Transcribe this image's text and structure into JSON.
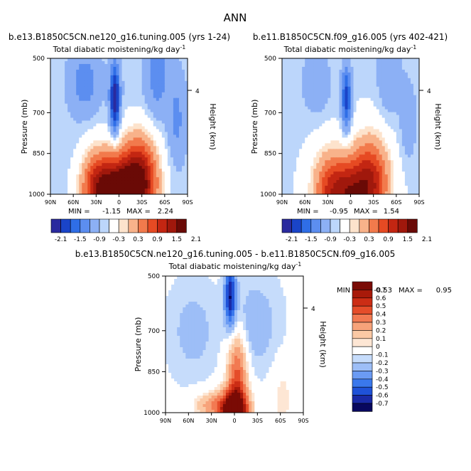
{
  "title": "ANN",
  "palette": {
    "full": [
      "#2a2a9e",
      "#1a44c8",
      "#2f6ee6",
      "#5c8ef0",
      "#8cb0f5",
      "#bcd6fb",
      "#ffffff",
      "#fde3cc",
      "#f8b28a",
      "#f27a4c",
      "#e64a23",
      "#c32612",
      "#a0180c",
      "#6a0a06"
    ],
    "diff": [
      "#08085e",
      "#1a2aa6",
      "#1f52d8",
      "#3a78ec",
      "#6b9bf3",
      "#9dbef7",
      "#c6dcfb",
      "#ffffff",
      "#fde6d4",
      "#fbc9a5",
      "#f7a37a",
      "#f27a52",
      "#e54d2a",
      "#cc2d15",
      "#a81a0a",
      "#7a0b05"
    ]
  },
  "chart_data": [
    {
      "type": "heatmap",
      "subtitle": "b.e13.B1850C5CN.ne120_g16.tuning.005 (yrs 1-24)",
      "title": "Total diabatic moistening/kg day",
      "title_sup": "-1",
      "ylabel": "Pressure (mb)",
      "ylabel_right": "Height (km)",
      "right_tick": "4",
      "yticks": [
        "500",
        "700",
        "850",
        "1000"
      ],
      "xticks": [
        "90N",
        "60N",
        "30N",
        "0",
        "30S",
        "60S",
        "90S"
      ],
      "min_label": "MIN =",
      "min_value": "-1.15",
      "max_label": "MAX =",
      "max_value": "2.24",
      "colorbar_labels": [
        "-2.1",
        "-1.5",
        "-0.9",
        "-0.3",
        "0.3",
        "0.9",
        "1.5",
        "2.1"
      ],
      "range": [
        -1.15,
        2.24
      ]
    },
    {
      "type": "heatmap",
      "subtitle": "b.e11.B1850C5CN.f09_g16.005 (yrs 402-421)",
      "title": "Total diabatic moistening/kg day",
      "title_sup": "-1",
      "ylabel": "Pressure (mb)",
      "ylabel_right": "Height (km)",
      "right_tick": "4",
      "yticks": [
        "500",
        "700",
        "850",
        "1000"
      ],
      "xticks": [
        "90N",
        "60N",
        "30N",
        "0",
        "30S",
        "60S",
        "90S"
      ],
      "min_label": "MIN =",
      "min_value": "-0.95",
      "max_label": "MAX =",
      "max_value": "1.54",
      "colorbar_labels": [
        "-2.1",
        "-1.5",
        "-0.9",
        "-0.3",
        "0.3",
        "0.9",
        "1.5",
        "2.1"
      ],
      "range": [
        -0.95,
        1.54
      ]
    },
    {
      "type": "heatmap",
      "subtitle": "b.e13.B1850C5CN.ne120_g16.tuning.005 - b.e11.B1850C5CN.f09_g16.005",
      "title": "Total diabatic moistening/kg day",
      "title_sup": "-1",
      "ylabel": "Pressure (mb)",
      "ylabel_right": "Height (km)",
      "right_tick": "4",
      "yticks": [
        "500",
        "700",
        "850",
        "1000"
      ],
      "xticks": [
        "90N",
        "60N",
        "30N",
        "0",
        "30S",
        "60S",
        "90S"
      ],
      "min_label": "MIN =",
      "min_value": "-0.53",
      "max_label": "MAX =",
      "max_value": "0.95",
      "colorbar_labels": [
        "0.7",
        "0.6",
        "0.5",
        "0.4",
        "0.3",
        "0.2",
        "0.1",
        "0",
        "-0.1",
        "-0.2",
        "-0.3",
        "-0.4",
        "-0.5",
        "-0.6",
        "-0.7"
      ],
      "range": [
        -0.53,
        0.95
      ]
    }
  ]
}
